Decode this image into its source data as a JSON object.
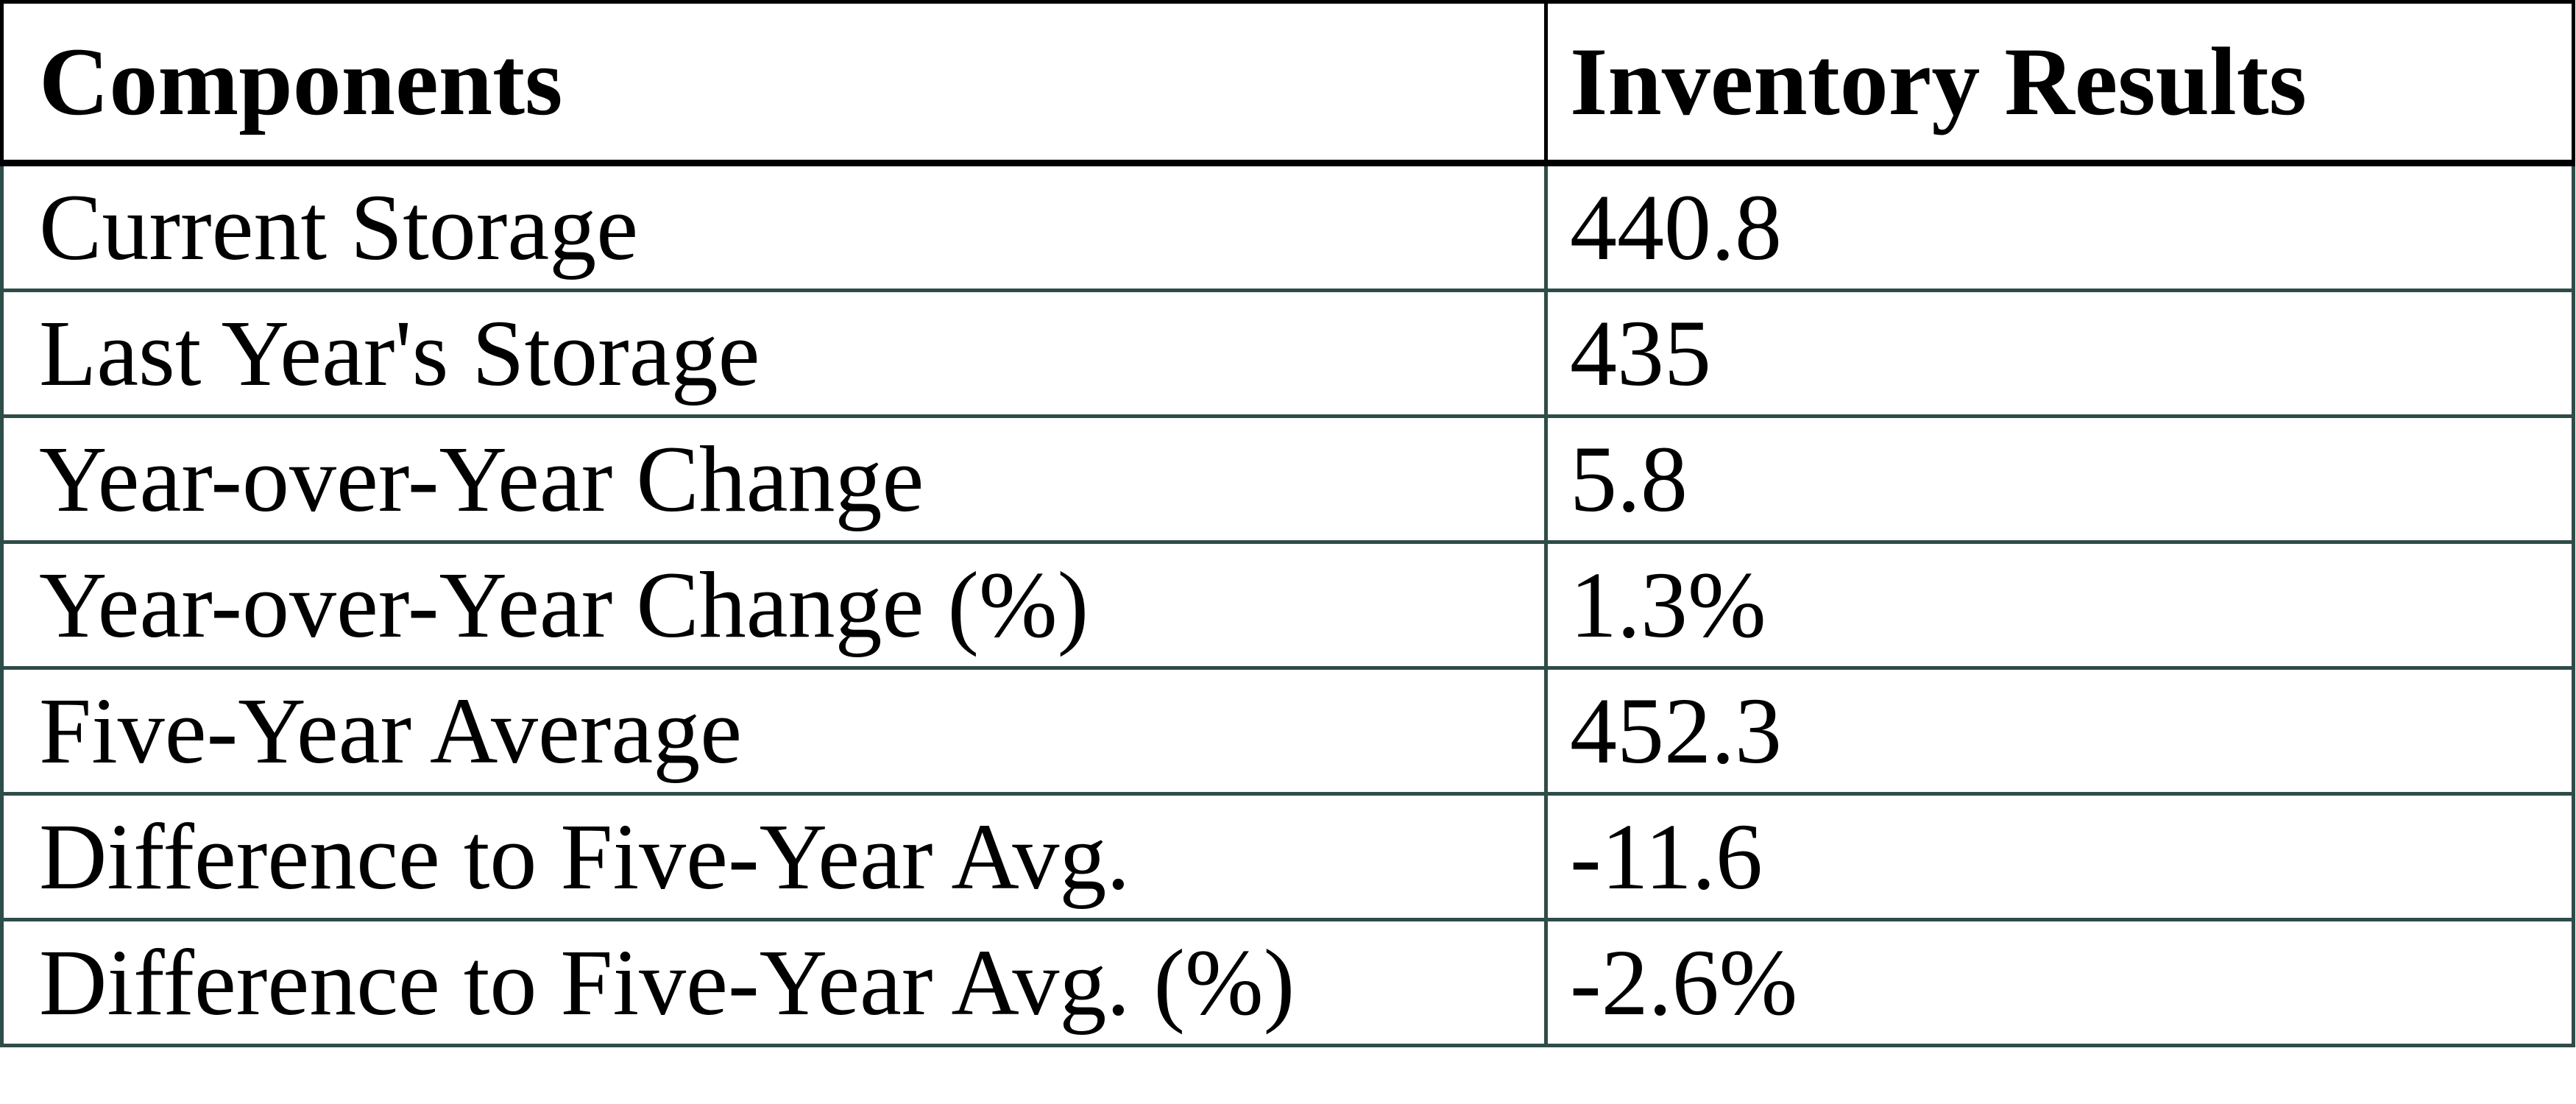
{
  "table": {
    "columns": [
      {
        "label": "Components"
      },
      {
        "label": "Inventory Results"
      }
    ],
    "rows": [
      {
        "label": "Current Storage",
        "value": "440.8"
      },
      {
        "label": "Last Year's Storage",
        "value": "435"
      },
      {
        "label": "Year-over-Year Change",
        "value": "5.8"
      },
      {
        "label": "Year-over-Year Change (%)",
        "value": "1.3%"
      },
      {
        "label": "Five-Year Average",
        "value": "452.3"
      },
      {
        "label": "Difference to Five-Year Avg.",
        "value": "-11.6"
      },
      {
        "label": "Difference to Five-Year Avg. (%)",
        "value": "-2.6%"
      }
    ],
    "colors": {
      "header_border": "#000000",
      "body_border": "#2e4c48",
      "text": "#000000",
      "background": "#ffffff"
    }
  }
}
